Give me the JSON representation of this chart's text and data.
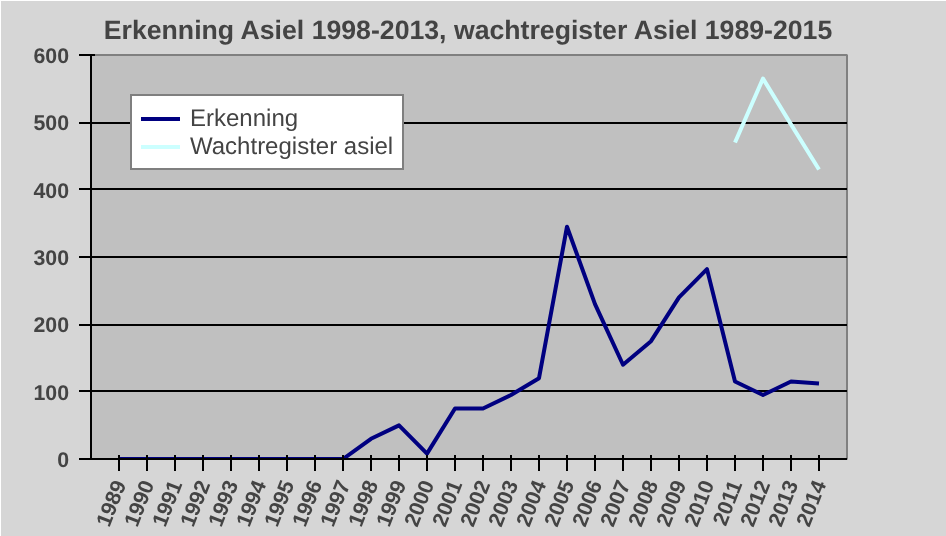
{
  "chart_data": {
    "type": "line",
    "title": "Erkenning Asiel 1998-2013, wachtregister Asiel 1989-2015",
    "categories": [
      "1989",
      "1990",
      "1991",
      "1992",
      "1993",
      "1994",
      "1995",
      "1996",
      "1997",
      "1998",
      "1999",
      "2000",
      "2001",
      "2002",
      "2003",
      "2004",
      "2005",
      "2006",
      "2007",
      "2008",
      "2009",
      "2010",
      "2011",
      "2012",
      "2013",
      "2014"
    ],
    "series": [
      {
        "name": "Erkenning",
        "color": "#000080",
        "values": [
          0,
          0,
          0,
          0,
          0,
          0,
          0,
          0,
          0,
          30,
          50,
          8,
          75,
          75,
          95,
          120,
          345,
          230,
          140,
          175,
          240,
          282,
          115,
          95,
          115,
          112
        ]
      },
      {
        "name": "Wachtregister asiel",
        "color": "#ccffff",
        "values": [
          null,
          null,
          null,
          null,
          null,
          null,
          null,
          null,
          null,
          null,
          null,
          null,
          null,
          null,
          null,
          null,
          null,
          null,
          null,
          null,
          null,
          null,
          470,
          565,
          497,
          430
        ]
      }
    ],
    "ylim": [
      0,
      600
    ],
    "yticks": [
      0,
      100,
      200,
      300,
      400,
      500,
      600
    ],
    "grid": "y",
    "legend": "top left",
    "marker": "none"
  }
}
